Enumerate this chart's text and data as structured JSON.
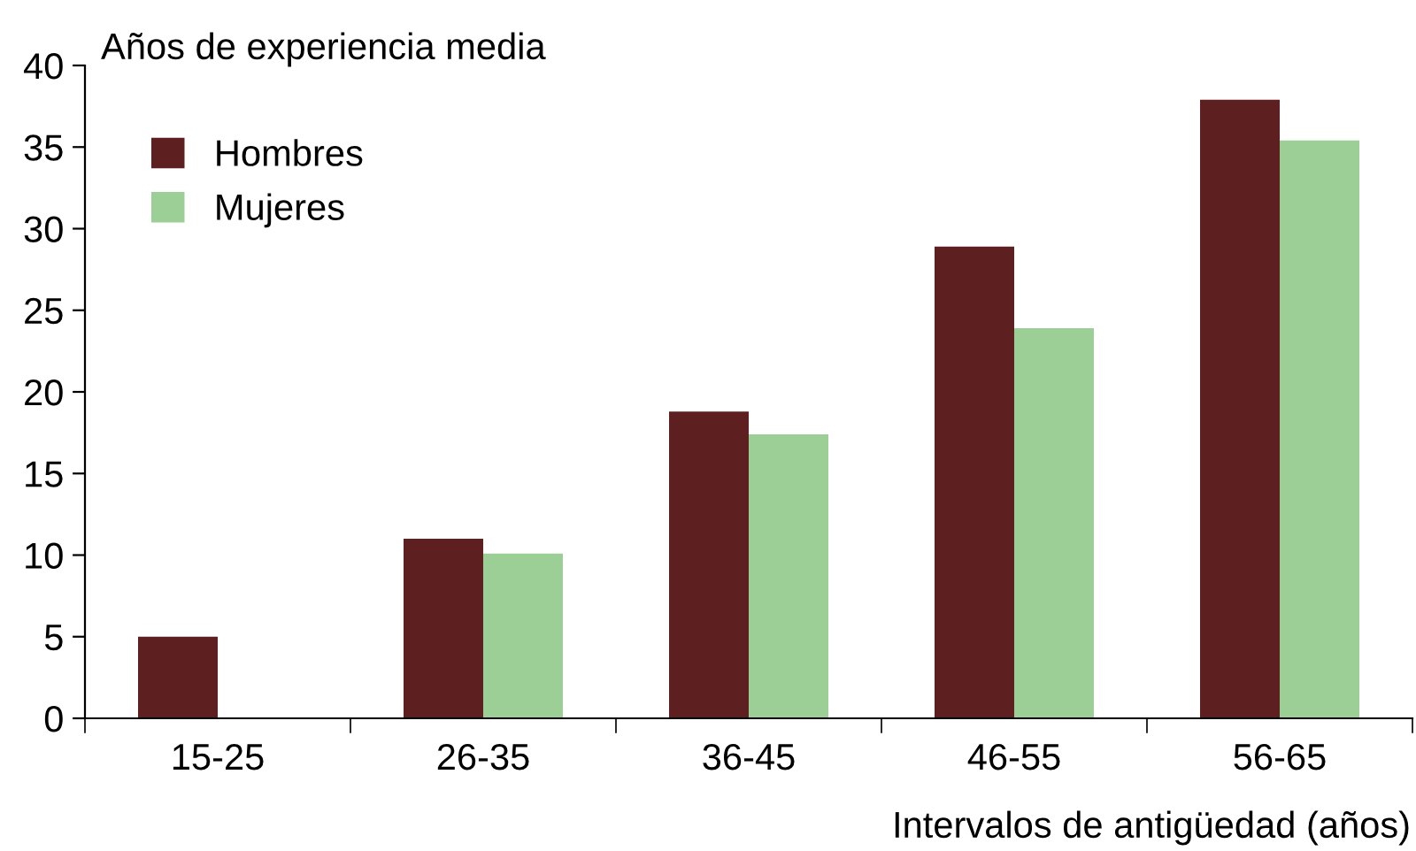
{
  "chart_data": {
    "type": "bar",
    "ylabel": "Años de experiencia media",
    "xlabel": "Intervalos de antigüedad (años)",
    "categories": [
      "15-25",
      "26-35",
      "36-45",
      "46-55",
      "56-65"
    ],
    "series": [
      {
        "name": "Hombres",
        "color": "#5e1f20",
        "values": [
          5,
          11,
          18.8,
          28.9,
          37.9
        ]
      },
      {
        "name": "Mujeres",
        "color": "#9bcf96",
        "values": [
          null,
          10.1,
          17.4,
          23.9,
          35.4
        ]
      }
    ],
    "ylim": [
      0,
      40
    ],
    "yticks": [
      0,
      5,
      10,
      15,
      20,
      25,
      30,
      35,
      40
    ],
    "grid": false,
    "legend": "top left"
  }
}
